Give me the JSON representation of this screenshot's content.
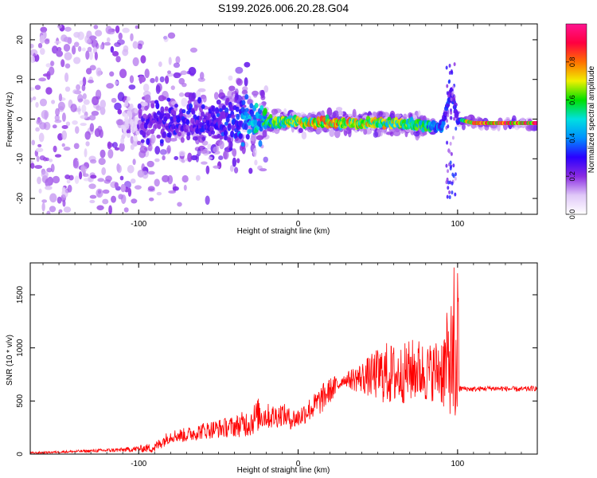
{
  "page": {
    "title": "S199.2026.006.20.28.G04"
  },
  "chart_data": [
    {
      "type": "heatmap",
      "title": "S199.2026.006.20.28.G04",
      "xlabel": "Height of straight line (km)",
      "ylabel": "Frequency (Hz)",
      "xlim": [
        -168,
        150
      ],
      "ylim": [
        -24,
        24
      ],
      "xticks": [
        -100,
        0,
        100
      ],
      "xtick_labels": [
        "-100",
        "0",
        "100"
      ],
      "yticks": [
        -20,
        -10,
        0,
        10,
        20
      ],
      "ytick_labels": [
        "-20",
        "-10",
        "0",
        "10",
        "20"
      ],
      "colorbar": {
        "label": "Normalized spectral amplitude",
        "range": [
          0,
          1
        ],
        "ticks": [
          0,
          0.2,
          0.4,
          0.6,
          0.8
        ],
        "tick_labels": [
          "0.0",
          "0.2",
          "0.4",
          "0.6",
          "0.8"
        ],
        "colormap": [
          "#ffffff",
          "#e0c8f8",
          "#8a2be2",
          "#2a00ff",
          "#0090ff",
          "#00e0e0",
          "#00e000",
          "#f0f000",
          "#ff7000",
          "#ff0040",
          "#ff1490"
        ]
      },
      "ridge": {
        "description_free": true,
        "points": [
          {
            "x": -100,
            "y": -1.5,
            "amp": 0.25
          },
          {
            "x": -80,
            "y": 0,
            "amp": 0.3
          },
          {
            "x": -60,
            "y": -1,
            "amp": 0.3
          },
          {
            "x": -40,
            "y": -1,
            "amp": 0.35
          },
          {
            "x": -20,
            "y": -1,
            "amp": 0.6
          },
          {
            "x": 0,
            "y": -0.5,
            "amp": 0.7
          },
          {
            "x": 20,
            "y": -1,
            "amp": 0.8
          },
          {
            "x": 40,
            "y": -1,
            "amp": 0.75
          },
          {
            "x": 60,
            "y": -1,
            "amp": 0.7
          },
          {
            "x": 80,
            "y": -1.5,
            "amp": 0.6
          },
          {
            "x": 90,
            "y": -2,
            "amp": 0.4
          },
          {
            "x": 96,
            "y": 7,
            "amp": 0.3
          },
          {
            "x": 100,
            "y": 0,
            "amp": 0.35
          },
          {
            "x": 110,
            "y": -1,
            "amp": 0.95
          },
          {
            "x": 130,
            "y": -1,
            "amp": 0.95
          },
          {
            "x": 150,
            "y": -1,
            "amp": 0.95
          }
        ]
      },
      "colors": {
        "ridge_high": "#ff0040",
        "ridge_mid": "#00e000",
        "ridge_low": "#2a00ff",
        "scatter": "#8a2be2"
      }
    },
    {
      "type": "line",
      "xlabel": "Height of straight line (km)",
      "ylabel": "SNR (10 * v/v)",
      "xlim": [
        -168,
        150
      ],
      "ylim": [
        0,
        1800
      ],
      "xticks": [
        -100,
        0,
        100
      ],
      "xtick_labels": [
        "-100",
        "0",
        "100"
      ],
      "yticks": [
        0,
        500,
        1000,
        1500
      ],
      "ytick_labels": [
        "0",
        "500",
        "1000",
        "1500"
      ],
      "series": [
        {
          "color": "#ff0000",
          "x": [
            -168,
            -150,
            -130,
            -110,
            -100,
            -90,
            -85,
            -80,
            -70,
            -60,
            -50,
            -40,
            -30,
            -25,
            -20,
            -15,
            -10,
            -5,
            0,
            5,
            10,
            15,
            20,
            25,
            28,
            30,
            35,
            40,
            45,
            50,
            55,
            60,
            65,
            70,
            75,
            80,
            85,
            90,
            93,
            95,
            97,
            99,
            100,
            101,
            103,
            105,
            110,
            120,
            130,
            140,
            150
          ],
          "y": [
            10,
            20,
            30,
            40,
            50,
            60,
            120,
            170,
            180,
            220,
            240,
            260,
            300,
            370,
            360,
            350,
            380,
            330,
            340,
            400,
            450,
            520,
            600,
            650,
            700,
            700,
            710,
            720,
            730,
            750,
            760,
            740,
            750,
            780,
            800,
            760,
            780,
            800,
            820,
            900,
            820,
            700,
            620,
            610,
            620,
            615,
            610,
            620,
            615,
            610,
            620
          ],
          "amplitude": [
            10,
            10,
            15,
            20,
            30,
            50,
            60,
            60,
            70,
            80,
            90,
            100,
            140,
            160,
            120,
            120,
            110,
            100,
            100,
            110,
            120,
            140,
            120,
            100,
            50,
            60,
            120,
            150,
            200,
            250,
            300,
            300,
            280,
            300,
            300,
            280,
            280,
            350,
            500,
            500,
            700,
            450,
            30,
            30,
            25,
            25,
            25,
            25,
            25,
            25,
            25
          ]
        }
      ]
    }
  ]
}
